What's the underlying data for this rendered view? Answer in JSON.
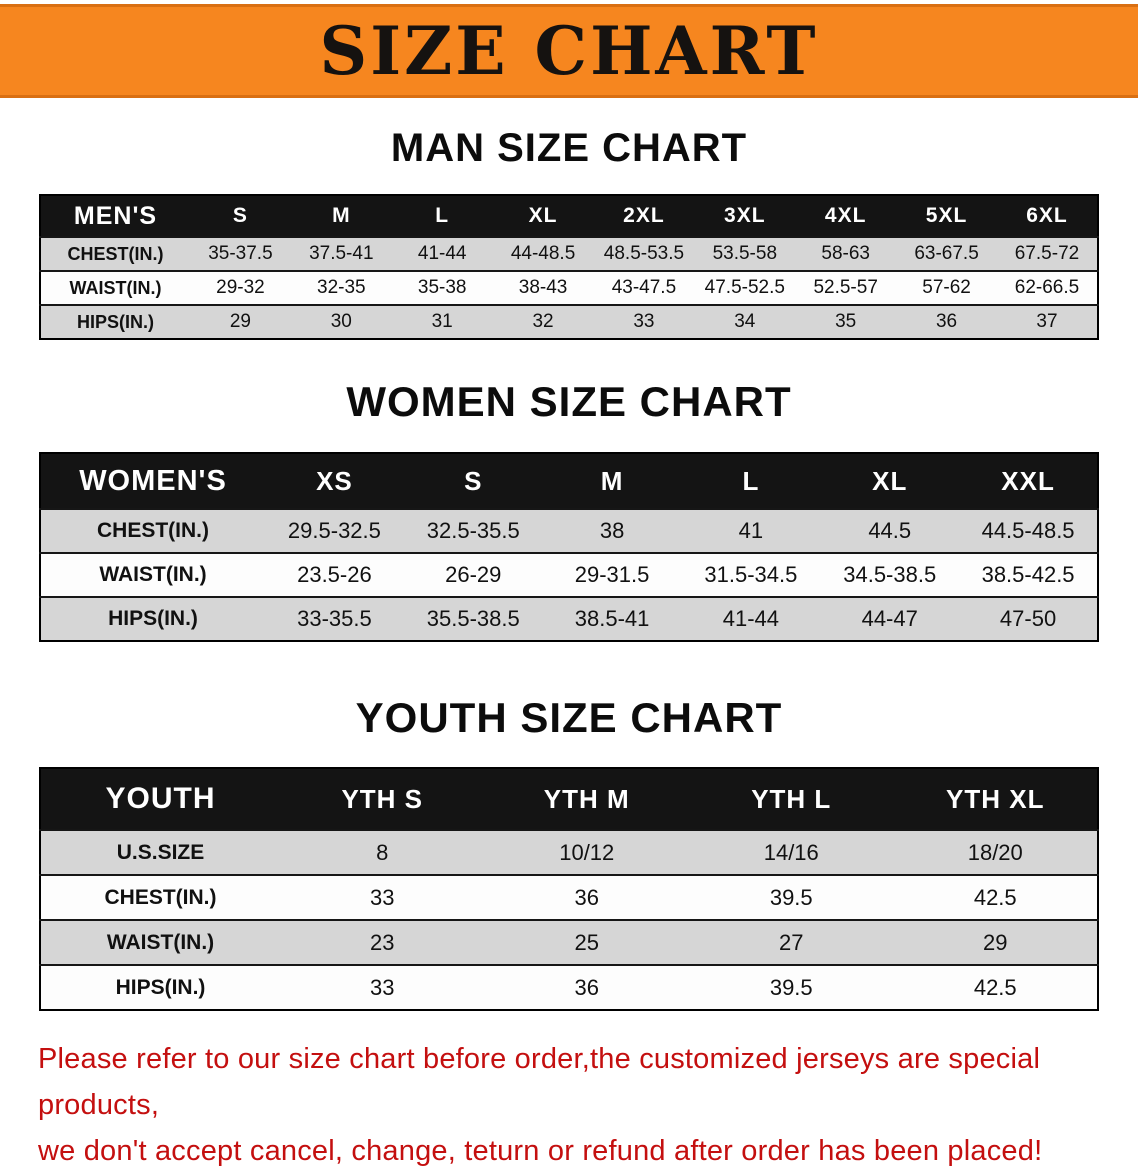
{
  "banner": {
    "title": "SIZE CHART"
  },
  "theme": {
    "banner_bg": "#f6861f",
    "banner_edge": "#d96f12",
    "header_bg": "#141414",
    "row_gray": "#d6d6d6",
    "row_white": "#fdfdfd",
    "disclaimer_red": "#c40f0f"
  },
  "sections": [
    {
      "id": "man",
      "heading": "MAN SIZE CHART",
      "corner_label": "MEN'S",
      "columns": [
        "S",
        "M",
        "L",
        "XL",
        "2XL",
        "3XL",
        "4XL",
        "5XL",
        "6XL"
      ],
      "rows": [
        {
          "label": "CHEST(IN.)",
          "values": [
            "35-37.5",
            "37.5-41",
            "41-44",
            "44-48.5",
            "48.5-53.5",
            "53.5-58",
            "58-63",
            "63-67.5",
            "67.5-72"
          ]
        },
        {
          "label": "WAIST(IN.)",
          "values": [
            "29-32",
            "32-35",
            "35-38",
            "38-43",
            "43-47.5",
            "47.5-52.5",
            "52.5-57",
            "57-62",
            "62-66.5"
          ]
        },
        {
          "label": "HIPS(IN.)",
          "values": [
            "29",
            "30",
            "31",
            "32",
            "33",
            "34",
            "35",
            "36",
            "37"
          ]
        }
      ]
    },
    {
      "id": "women",
      "heading": "WOMEN SIZE CHART",
      "corner_label": "WOMEN'S",
      "columns": [
        "XS",
        "S",
        "M",
        "L",
        "XL",
        "XXL"
      ],
      "rows": [
        {
          "label": "CHEST(IN.)",
          "values": [
            "29.5-32.5",
            "32.5-35.5",
            "38",
            "41",
            "44.5",
            "44.5-48.5"
          ]
        },
        {
          "label": "WAIST(IN.)",
          "values": [
            "23.5-26",
            "26-29",
            "29-31.5",
            "31.5-34.5",
            "34.5-38.5",
            "38.5-42.5"
          ]
        },
        {
          "label": "HIPS(IN.)",
          "values": [
            "33-35.5",
            "35.5-38.5",
            "38.5-41",
            "41-44",
            "44-47",
            "47-50"
          ]
        }
      ]
    },
    {
      "id": "youth",
      "heading": "YOUTH SIZE CHART",
      "corner_label": "YOUTH",
      "columns": [
        "YTH S",
        "YTH M",
        "YTH L",
        "YTH XL"
      ],
      "rows": [
        {
          "label": "U.S.SIZE",
          "values": [
            "8",
            "10/12",
            "14/16",
            "18/20"
          ]
        },
        {
          "label": "CHEST(IN.)",
          "values": [
            "33",
            "36",
            "39.5",
            "42.5"
          ]
        },
        {
          "label": "WAIST(IN.)",
          "values": [
            "23",
            "25",
            "27",
            "29"
          ]
        },
        {
          "label": "HIPS(IN.)",
          "values": [
            "33",
            "36",
            "39.5",
            "42.5"
          ]
        }
      ]
    }
  ],
  "disclaimer": {
    "line1": "Please refer to our size chart before order,the customized jerseys are special products,",
    "line2": "we don't accept cancel, change, teturn or refund after order has been placed!"
  }
}
